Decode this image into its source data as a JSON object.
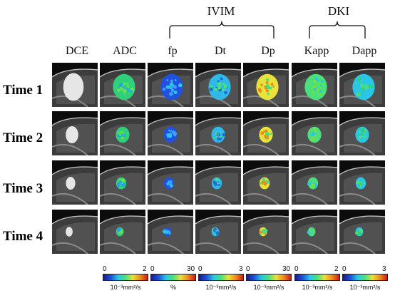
{
  "groups": [
    {
      "label": "IVIM"
    },
    {
      "label": "DKI"
    }
  ],
  "columns": [
    "DCE",
    "ADC",
    "fp",
    "Dt",
    "Dp",
    "Kapp",
    "Dapp"
  ],
  "rows": [
    "Time 1",
    "Time 2",
    "Time 3",
    "Time 4"
  ],
  "colorbars": [
    {
      "min": "0",
      "max": "2",
      "unit": "10⁻³mm²/s"
    },
    {
      "min": "0",
      "max": "30",
      "unit": "%"
    },
    {
      "min": "0",
      "max": "3",
      "unit": "10⁻³mm²/s"
    },
    {
      "min": "0",
      "max": "30",
      "unit": "10⁻³mm²/s"
    },
    {
      "min": "0",
      "max": "2",
      "unit": "10⁻³mm²/s"
    },
    {
      "min": "0",
      "max": "3",
      "unit": "10⁻³mm²/s"
    }
  ],
  "colormap": [
    "#1a1a8c",
    "#1f4fd6",
    "#29c6e6",
    "#4be07a",
    "#e8e23a",
    "#f08a1e",
    "#c81e1e"
  ]
}
